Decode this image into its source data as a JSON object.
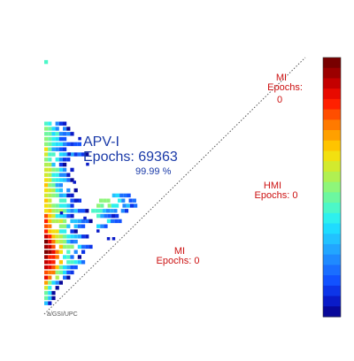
{
  "chart_data": {
    "type": "heatmap",
    "title": "",
    "xlabel": "",
    "ylabel": "",
    "regions": [
      {
        "name": "APV-I",
        "epochs_label": "Epochs: 69363",
        "percent": "99.99 %",
        "color": "#1a3aa8"
      },
      {
        "name": "MI",
        "epochs_label": "Epochs:",
        "epochs_value": "0",
        "color": "#cc1111"
      },
      {
        "name": "HMI",
        "epochs_label": "Epochs: 0",
        "color": "#cc1111"
      },
      {
        "name": "MI",
        "epochs_label": "Epochs: 0",
        "color": "#cc1111"
      }
    ],
    "colorbar": {
      "colors": [
        "#08089a",
        "#0a1bc8",
        "#0d35e8",
        "#1252ff",
        "#1a6eff",
        "#1f8aff",
        "#22a6ff",
        "#22c2ff",
        "#1fdcff",
        "#2ef0ee",
        "#4cf7c8",
        "#6cf7a0",
        "#8ef67a",
        "#b0f052",
        "#d2ea2e",
        "#f2e010",
        "#ffc400",
        "#ffa000",
        "#ff7a00",
        "#ff4e00",
        "#ff2000",
        "#e80a00",
        "#c40000",
        "#9c0000",
        "#780000"
      ]
    },
    "heat_rows": [
      {
        "y": 0.99,
        "x0": 0.0,
        "n": 1,
        "peak": 0.4
      },
      {
        "y": 0.75,
        "x0": 0.0,
        "n": 6,
        "peak": 0.45
      },
      {
        "y": 0.73,
        "x0": 0.0,
        "n": 7,
        "peak": 0.5
      },
      {
        "y": 0.71,
        "x0": 0.0,
        "n": 9,
        "peak": 0.5
      },
      {
        "y": 0.69,
        "x0": 0.0,
        "n": 7,
        "peak": 0.55
      },
      {
        "y": 0.67,
        "x0": 0.0,
        "n": 10,
        "peak": 0.5
      },
      {
        "y": 0.65,
        "x0": 0.0,
        "n": 6,
        "peak": 0.55
      },
      {
        "y": 0.63,
        "x0": 0.0,
        "n": 12,
        "peak": 0.5
      },
      {
        "y": 0.61,
        "x0": 0.0,
        "n": 8,
        "peak": 0.55
      },
      {
        "y": 0.59,
        "x0": 0.0,
        "n": 6,
        "peak": 0.6
      },
      {
        "y": 0.57,
        "x0": 0.0,
        "n": 9,
        "peak": 0.6
      },
      {
        "y": 0.55,
        "x0": 0.0,
        "n": 7,
        "peak": 0.6
      },
      {
        "y": 0.53,
        "x0": 0.0,
        "n": 8,
        "peak": 0.6
      },
      {
        "y": 0.51,
        "x0": 0.0,
        "n": 6,
        "peak": 0.65
      },
      {
        "y": 0.49,
        "x0": 0.0,
        "n": 9,
        "peak": 0.65
      },
      {
        "y": 0.47,
        "x0": 0.0,
        "n": 8,
        "peak": 0.65
      },
      {
        "y": 0.45,
        "x0": 0.0,
        "n": 10,
        "peak": 0.7
      },
      {
        "y": 0.43,
        "x0": 0.0,
        "n": 9,
        "peak": 0.7
      },
      {
        "y": 0.41,
        "x0": 0.0,
        "n": 12,
        "peak": 0.7
      },
      {
        "y": 0.39,
        "x0": 0.0,
        "n": 8,
        "peak": 0.75
      },
      {
        "y": 0.37,
        "x0": 0.0,
        "n": 14,
        "peak": 0.75
      },
      {
        "y": 0.35,
        "x0": 0.0,
        "n": 11,
        "peak": 0.8
      },
      {
        "y": 0.33,
        "x0": 0.0,
        "n": 9,
        "peak": 0.85
      },
      {
        "y": 0.31,
        "x0": 0.0,
        "n": 12,
        "peak": 0.9
      },
      {
        "y": 0.29,
        "x0": 0.0,
        "n": 10,
        "peak": 0.95
      },
      {
        "y": 0.27,
        "x0": 0.0,
        "n": 13,
        "peak": 1.0
      },
      {
        "y": 0.25,
        "x0": 0.0,
        "n": 11,
        "peak": 1.0
      },
      {
        "y": 0.23,
        "x0": 0.0,
        "n": 10,
        "peak": 1.0
      },
      {
        "y": 0.21,
        "x0": 0.0,
        "n": 12,
        "peak": 1.0
      },
      {
        "y": 0.19,
        "x0": 0.0,
        "n": 9,
        "peak": 0.95
      },
      {
        "y": 0.17,
        "x0": 0.0,
        "n": 8,
        "peak": 0.9
      },
      {
        "y": 0.15,
        "x0": 0.0,
        "n": 7,
        "peak": 0.85
      },
      {
        "y": 0.13,
        "x0": 0.0,
        "n": 5,
        "peak": 0.75
      },
      {
        "y": 0.11,
        "x0": 0.0,
        "n": 4,
        "peak": 0.65
      },
      {
        "y": 0.09,
        "x0": 0.0,
        "n": 3,
        "peak": 0.55
      },
      {
        "y": 0.07,
        "x0": 0.0,
        "n": 3,
        "peak": 0.45
      },
      {
        "y": 0.05,
        "x0": 0.0,
        "n": 2,
        "peak": 0.35
      }
    ],
    "heat_streak": [
      {
        "y": 0.47,
        "x0": 0.26,
        "n": 5,
        "peak": 0.35
      },
      {
        "y": 0.45,
        "x0": 0.21,
        "n": 10,
        "peak": 0.5
      },
      {
        "y": 0.43,
        "x0": 0.2,
        "n": 12,
        "peak": 0.55
      },
      {
        "y": 0.41,
        "x0": 0.18,
        "n": 10,
        "peak": 0.45
      },
      {
        "y": 0.39,
        "x0": 0.2,
        "n": 6,
        "peak": 0.35
      },
      {
        "y": 0.37,
        "x0": 0.24,
        "n": 4,
        "peak": 0.3
      },
      {
        "y": 0.35,
        "x0": 0.2,
        "n": 3,
        "peak": 0.3
      }
    ],
    "footer": "ä/GSI/UPC"
  }
}
